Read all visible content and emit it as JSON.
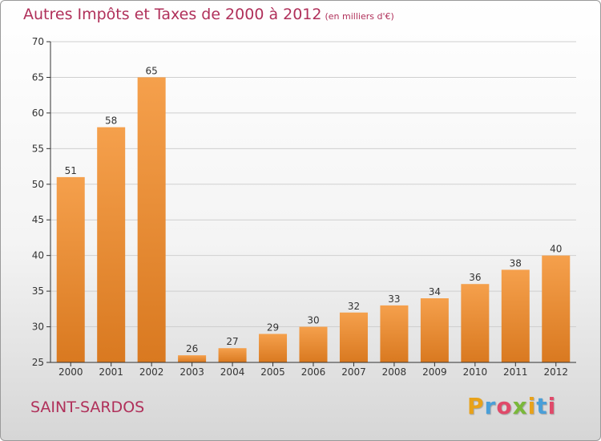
{
  "header": {
    "title": "Autres Impôts et Taxes de 2000 à 2012",
    "subtitle": "(en milliers d'€)"
  },
  "footer": {
    "commune": "SAINT-SARDOS",
    "logo_letters": [
      {
        "char": "P",
        "color": "#e8a21a"
      },
      {
        "char": "r",
        "color": "#4a9fd8"
      },
      {
        "char": "o",
        "color": "#e04a6a"
      },
      {
        "char": "x",
        "color": "#7ab83a"
      },
      {
        "char": "i",
        "color": "#e8a21a"
      },
      {
        "char": "t",
        "color": "#4a9fd8"
      },
      {
        "char": "i",
        "color": "#e04a6a"
      }
    ]
  },
  "colors": {
    "title": "#b0305a",
    "bar_top": "#f5a04c",
    "bar_bottom": "#d97920",
    "axis": "#333333",
    "grid": "#cfcfcf"
  },
  "chart_data": {
    "type": "bar",
    "categories": [
      "2000",
      "2001",
      "2002",
      "2003",
      "2004",
      "2005",
      "2006",
      "2007",
      "2008",
      "2009",
      "2010",
      "2011",
      "2012"
    ],
    "values": [
      51,
      58,
      65,
      26,
      27,
      29,
      30,
      32,
      33,
      34,
      36,
      38,
      40
    ],
    "ylim": [
      25,
      70
    ],
    "yticks": [
      25,
      30,
      35,
      40,
      45,
      50,
      55,
      60,
      65,
      70
    ],
    "grid": true
  }
}
